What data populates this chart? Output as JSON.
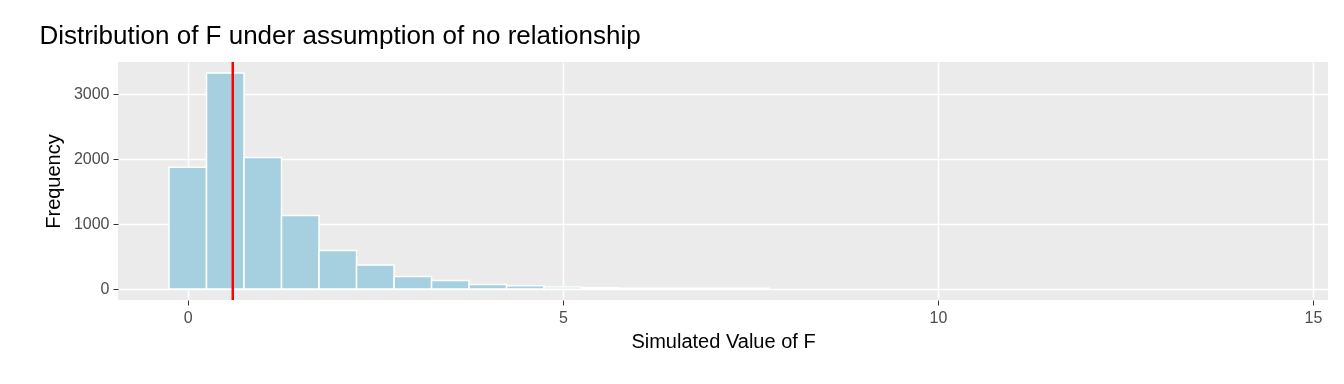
{
  "chart_data": {
    "type": "histogram",
    "title": "Distribution of F under assumption of no relationship",
    "xlabel": "Simulated Value of F",
    "ylabel": "Frequency",
    "bins": [
      -0.25,
      0.25,
      0.75,
      1.25,
      1.75,
      2.25,
      2.75,
      3.25,
      3.75,
      4.25,
      4.75,
      5.25,
      5.75,
      6.25,
      6.75,
      7.25,
      7.75,
      8.25,
      8.75,
      9.25,
      9.75,
      10.25,
      10.75,
      11.25,
      11.75,
      12.25,
      12.75,
      13.25,
      13.75,
      14.25,
      14.75
    ],
    "values": [
      1870,
      3320,
      2020,
      1130,
      590,
      370,
      190,
      130,
      70,
      50,
      30,
      20,
      10,
      10,
      10,
      10,
      0,
      0,
      0,
      0,
      0,
      0,
      0,
      0,
      0,
      0,
      0,
      0,
      0,
      0
    ],
    "color": "#a6d0e0",
    "xlim": [
      -0.93,
      15.2
    ],
    "ylim": [
      -170,
      3490
    ],
    "xticks": [
      0,
      5,
      10,
      15
    ],
    "yticks": [
      0,
      1000,
      2000,
      3000
    ],
    "grid": true,
    "ref_lines": [
      {
        "axis": "x",
        "value": 0.6,
        "color": "#ff0000"
      }
    ]
  }
}
